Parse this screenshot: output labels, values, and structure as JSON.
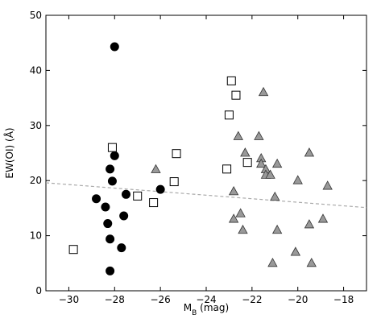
{
  "chart_data": {
    "type": "scatter",
    "xlabel_main": "M",
    "xlabel_sub": "B",
    "xlabel_unit": " (mag)",
    "ylabel": "EW(OI) (Å)",
    "xlim": [
      -31,
      -17
    ],
    "ylim": [
      0,
      50
    ],
    "xticks": [
      -30,
      -28,
      -26,
      -24,
      -22,
      -20,
      -18
    ],
    "yticks": [
      0,
      10,
      20,
      30,
      40,
      50
    ],
    "grid": false,
    "series": [
      {
        "marker": "circle",
        "color": "#000000",
        "points": [
          [
            -28.0,
            44.3
          ],
          [
            -28.0,
            24.5
          ],
          [
            -28.2,
            22.1
          ],
          [
            -28.1,
            19.9
          ],
          [
            -28.8,
            16.7
          ],
          [
            -27.5,
            17.5
          ],
          [
            -26.0,
            18.4
          ],
          [
            -28.4,
            15.2
          ],
          [
            -27.6,
            13.6
          ],
          [
            -28.3,
            12.2
          ],
          [
            -28.2,
            9.4
          ],
          [
            -27.7,
            7.8
          ],
          [
            -28.2,
            3.6
          ]
        ]
      },
      {
        "marker": "square",
        "color": "#ffffff",
        "points": [
          [
            -22.9,
            38.1
          ],
          [
            -22.7,
            35.5
          ],
          [
            -23.0,
            31.9
          ],
          [
            -28.1,
            26.0
          ],
          [
            -25.3,
            24.9
          ],
          [
            -22.2,
            23.3
          ],
          [
            -23.1,
            22.1
          ],
          [
            -25.4,
            19.8
          ],
          [
            -27.0,
            17.2
          ],
          [
            -26.3,
            16.0
          ],
          [
            -29.8,
            7.5
          ]
        ]
      },
      {
        "marker": "triangle",
        "color": "#999999",
        "points": [
          [
            -21.5,
            36.0
          ],
          [
            -22.6,
            28.0
          ],
          [
            -21.7,
            28.0
          ],
          [
            -22.3,
            25.0
          ],
          [
            -19.5,
            25.0
          ],
          [
            -21.6,
            24.0
          ],
          [
            -21.6,
            23.0
          ],
          [
            -20.9,
            23.0
          ],
          [
            -21.4,
            22.0
          ],
          [
            -26.2,
            22.0
          ],
          [
            -21.4,
            21.0
          ],
          [
            -21.2,
            21.0
          ],
          [
            -20.0,
            20.0
          ],
          [
            -18.7,
            19.0
          ],
          [
            -22.8,
            18.0
          ],
          [
            -21.0,
            17.0
          ],
          [
            -22.5,
            14.0
          ],
          [
            -22.8,
            13.0
          ],
          [
            -18.9,
            13.0
          ],
          [
            -19.5,
            12.0
          ],
          [
            -22.4,
            11.0
          ],
          [
            -20.9,
            11.0
          ],
          [
            -20.1,
            7.0
          ],
          [
            -21.1,
            5.0
          ],
          [
            -19.4,
            5.0
          ]
        ]
      }
    ],
    "fit_line": {
      "style": "dashed",
      "color": "#aaaaaa",
      "from": [
        -31,
        19.6
      ],
      "to": [
        -17,
        15.1
      ]
    }
  }
}
